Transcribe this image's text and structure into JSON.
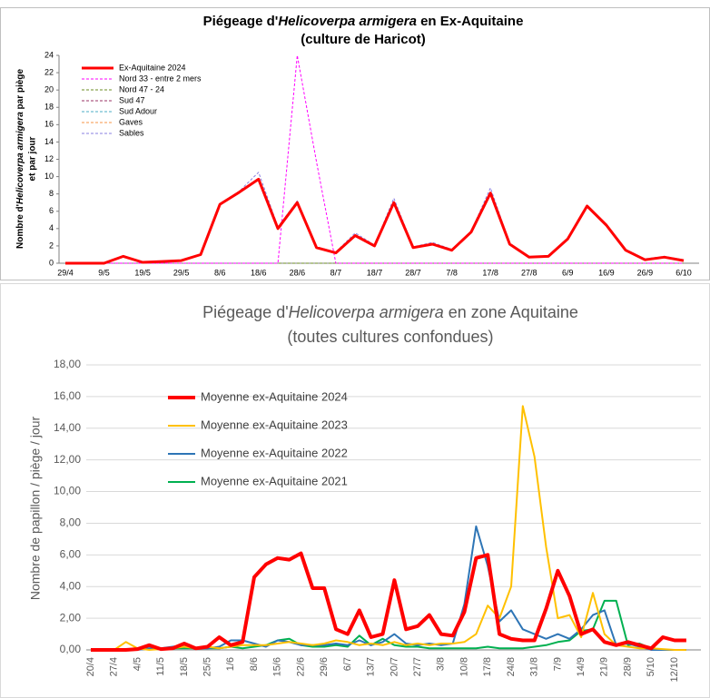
{
  "chart_data": [
    {
      "type": "line",
      "title": [
        "Piégeage d'",
        "Helicoverpa armigera",
        " en Ex-Aquitaine"
      ],
      "subtitle": "(culture de Haricot)",
      "ylabel": [
        "Nombre d'",
        "Helicoverpa armigera",
        " par piège",
        "et par jour"
      ],
      "categories": [
        "29/4",
        null,
        "9/5",
        null,
        "19/5",
        null,
        "29/5",
        null,
        "8/6",
        null,
        "18/6",
        null,
        "28/6",
        null,
        "8/7",
        null,
        "18/7",
        null,
        "28/7",
        null,
        "7/8",
        null,
        "17/8",
        null,
        "27/8",
        null,
        "6/9",
        null,
        "16/9",
        null,
        "26/9",
        null,
        "6/10"
      ],
      "ylim": [
        0,
        24
      ],
      "yticks": [
        0,
        2,
        4,
        6,
        8,
        10,
        12,
        14,
        16,
        18,
        20,
        22,
        24
      ],
      "grid": false,
      "legend": "upper left",
      "series": [
        {
          "name": "Ex-Aquitaine 2024",
          "color": "#ff0000",
          "style": "solid",
          "values": [
            0,
            0,
            0,
            0.8,
            0.1,
            0.2,
            0.3,
            1.0,
            6.8,
            8.2,
            9.7,
            4.0,
            7.0,
            1.8,
            1.2,
            3.2,
            2.0,
            7.0,
            1.8,
            2.2,
            1.5,
            3.6,
            8.1,
            2.2,
            0.7,
            0.8,
            2.8,
            6.6,
            4.4,
            1.5,
            0.4,
            0.7,
            0.3
          ]
        },
        {
          "name": "Nord 33 - entre 2 mers",
          "color": "#ff00ff",
          "style": "dashed",
          "values": [
            0,
            0,
            0,
            0,
            0,
            0,
            0,
            0,
            0,
            0,
            0,
            0,
            24,
            11.7,
            0,
            0,
            0,
            0,
            0,
            0,
            0,
            0,
            0,
            0,
            0,
            0,
            0,
            0,
            0,
            0,
            0,
            0,
            0
          ]
        },
        {
          "name": "Nord 47 - 24",
          "color": "#6b8e23",
          "style": "dashed",
          "values": [
            0,
            0,
            0,
            0,
            0,
            0,
            0,
            0,
            0,
            0,
            0,
            0,
            0,
            0,
            0,
            0,
            0,
            0,
            0,
            0,
            0,
            0,
            0,
            0,
            0,
            0,
            0,
            0,
            0,
            0,
            0,
            0,
            0
          ]
        },
        {
          "name": "Sud 47",
          "color": "#993366",
          "style": "dashed",
          "values": [
            0,
            0,
            0,
            0,
            0,
            0,
            0,
            0,
            0,
            0,
            0,
            0,
            0,
            0,
            0,
            0,
            0,
            0,
            0,
            0,
            0,
            0,
            0,
            0,
            0,
            0,
            0,
            0,
            0,
            0,
            0,
            0,
            0
          ]
        },
        {
          "name": "Sud Adour",
          "color": "#4bacc6",
          "style": "dashed",
          "values": [
            0,
            0,
            0,
            0,
            0,
            0,
            0,
            0,
            0,
            0,
            0,
            0,
            0,
            0,
            0,
            0,
            0,
            0,
            0,
            0,
            0,
            0,
            0,
            0,
            0,
            0,
            0,
            0,
            0,
            0,
            0,
            0,
            0
          ]
        },
        {
          "name": "Gaves",
          "color": "#f79646",
          "style": "dashed",
          "values": [
            0,
            0,
            0,
            0,
            0,
            0,
            0,
            0,
            0,
            0,
            0,
            0,
            0,
            0,
            0,
            0,
            0,
            0,
            0,
            0,
            0,
            0,
            0,
            0,
            0,
            0,
            0,
            0,
            0,
            0,
            0,
            0,
            0
          ]
        },
        {
          "name": "Sables",
          "color": "#8a7fe0",
          "style": "dashed",
          "values": [
            0,
            0,
            0,
            0.8,
            0.1,
            0.2,
            0.3,
            1.0,
            6.9,
            8.3,
            10.5,
            4.2,
            7.2,
            1.9,
            1.3,
            3.5,
            2.1,
            7.5,
            1.9,
            2.4,
            1.6,
            3.7,
            8.7,
            2.3,
            0.7,
            0.9,
            2.9,
            6.7,
            4.5,
            1.6,
            0.5,
            0.8,
            0.4
          ]
        }
      ]
    },
    {
      "type": "line",
      "title": [
        "Piégeage d'",
        "Helicoverpa armigera",
        " en zone Aquitaine"
      ],
      "subtitle": "(toutes cultures confondues)",
      "ylabel": "Nombre de papillon / piège / jour",
      "categories": [
        "20/4",
        null,
        "27/4",
        null,
        "4/5",
        null,
        "11/5",
        null,
        "18/5",
        null,
        "25/5",
        null,
        "1/6",
        null,
        "8/6",
        null,
        "15/6",
        null,
        "22/6",
        null,
        "29/6",
        null,
        "6/7",
        null,
        "13/7",
        null,
        "20/7",
        null,
        "27/7",
        null,
        "3/8",
        null,
        "10/8",
        null,
        "17/8",
        null,
        "24/8",
        null,
        "31/8",
        null,
        "7/9",
        null,
        "14/9",
        null,
        "21/9",
        null,
        "28/9",
        null,
        "5/10",
        null,
        "12/10",
        null
      ],
      "ylim": [
        0,
        18
      ],
      "yticks": [
        {
          "value": 0,
          "label": "0,00"
        },
        {
          "value": 2,
          "label": "2,00"
        },
        {
          "value": 4,
          "label": "4,00"
        },
        {
          "value": 6,
          "label": "6,00"
        },
        {
          "value": 8,
          "label": "8,00"
        },
        {
          "value": 10,
          "label": "10,00"
        },
        {
          "value": 12,
          "label": "12,00"
        },
        {
          "value": 14,
          "label": "14,00"
        },
        {
          "value": 16,
          "label": "16,00"
        },
        {
          "value": 18,
          "label": "18,00"
        }
      ],
      "grid": true,
      "legend": "upper left",
      "series": [
        {
          "name": "Moyenne ex-Aquitaine 2024",
          "color": "#ff0000",
          "style": "solid",
          "values": [
            0,
            0,
            0,
            0,
            0.05,
            0.3,
            0.05,
            0.1,
            0.4,
            0.1,
            0.2,
            0.8,
            0.3,
            0.5,
            4.6,
            5.4,
            5.8,
            5.7,
            6.1,
            3.9,
            3.9,
            1.3,
            1.0,
            2.5,
            0.8,
            1.0,
            4.4,
            1.3,
            1.5,
            2.2,
            1.0,
            0.9,
            2.4,
            5.8,
            6.0,
            1.0,
            0.7,
            0.6,
            0.6,
            2.6,
            5.0,
            3.4,
            1.0,
            1.3,
            0.5,
            0.3,
            0.5,
            0.3,
            0.1,
            0.8,
            0.6,
            0.6
          ]
        },
        {
          "name": "Moyenne ex-Aquitaine 2023",
          "color": "#ffc000",
          "style": "solid",
          "values": [
            0,
            0,
            0,
            0.5,
            0.1,
            0,
            0.05,
            0.1,
            0.2,
            0.1,
            0.2,
            0.1,
            0.2,
            0.3,
            0.3,
            0.3,
            0.4,
            0.5,
            0.4,
            0.3,
            0.4,
            0.6,
            0.5,
            0.3,
            0.4,
            0.3,
            0.5,
            0.3,
            0.4,
            0.3,
            0.4,
            0.4,
            0.5,
            1.0,
            2.8,
            2.0,
            4.0,
            15.4,
            12.2,
            6.5,
            2.0,
            2.2,
            0.8,
            3.6,
            1.0,
            0.3,
            0.2,
            0.1,
            0.1,
            0.05,
            0,
            0
          ]
        },
        {
          "name": "Moyenne ex-Aquitaine 2022",
          "color": "#2e75b6",
          "style": "solid",
          "values": [
            0,
            0,
            0,
            0,
            0,
            0.1,
            0.1,
            0.2,
            0.3,
            0.1,
            0.1,
            0.2,
            0.6,
            0.6,
            0.4,
            0.2,
            0.6,
            0.5,
            0.3,
            0.3,
            0.3,
            0.4,
            0.3,
            0.6,
            0.3,
            0.5,
            1.0,
            0.4,
            0.3,
            0.4,
            0.3,
            0.4,
            2.9,
            7.8,
            5.3,
            1.8,
            2.5,
            1.3,
            1.0,
            0.7,
            1.0,
            0.7,
            1.3,
            2.2,
            2.5,
            0.3,
            0.4,
            0.2,
            0,
            0,
            0,
            0
          ]
        },
        {
          "name": "Moyenne ex-Aquitaine 2021",
          "color": "#00b050",
          "style": "solid",
          "values": [
            0,
            0,
            0,
            0,
            0.05,
            0.1,
            0.05,
            0.1,
            0.1,
            0.1,
            0.1,
            0.1,
            0.2,
            0.1,
            0.2,
            0.3,
            0.6,
            0.7,
            0.3,
            0.2,
            0.2,
            0.3,
            0.2,
            0.9,
            0.3,
            0.7,
            0.3,
            0.2,
            0.2,
            0.1,
            0.1,
            0.1,
            0.1,
            0.1,
            0.2,
            0.1,
            0.1,
            0.1,
            0.2,
            0.3,
            0.5,
            0.6,
            1.2,
            1.3,
            3.1,
            3.1,
            0.3,
            0.4,
            0.1,
            0,
            0,
            0
          ]
        }
      ]
    }
  ]
}
